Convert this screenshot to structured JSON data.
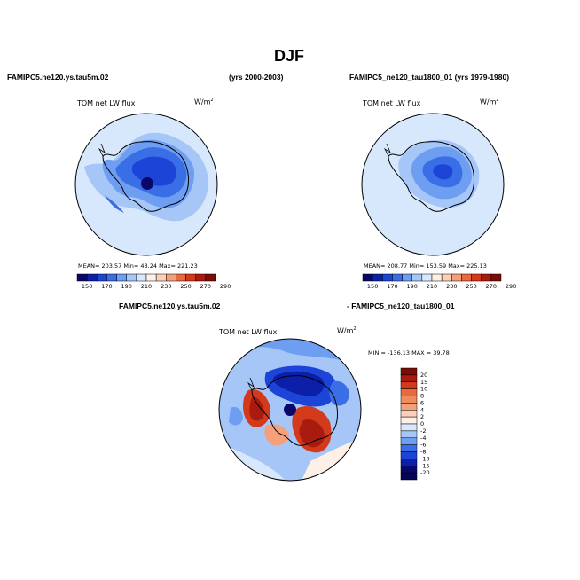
{
  "header": {
    "title": "DJF",
    "left_case": "FAMIPC5.ne120.ys.tau5m.02",
    "left_years": "(yrs 2000-2003)",
    "right_case": "FAMIPC5_ne120_tau1800_01 (yrs 1979-1980)",
    "diff_case_a": "FAMIPC5.ne120.ys.tau5m.02",
    "diff_case_b": "- FAMIPC5_ne120_tau1800_01"
  },
  "panels": [
    {
      "variable": "TOM net LW flux",
      "units": "W/m",
      "units_sup": "2",
      "stats_text": "MEAN= 203.57   Min=  43.24   Max= 221.23"
    },
    {
      "variable": "TOM net LW flux",
      "units": "W/m",
      "units_sup": "2",
      "stats_text": "MEAN= 208.77   Min= 153.59   Max= 225.13"
    },
    {
      "variable": "TOM net LW flux",
      "units": "W/m",
      "units_sup": "2",
      "stats_text": "MIN = -136.13  MAX =  39.78"
    }
  ],
  "colorbars": {
    "absolute": {
      "labels": [
        "150",
        "170",
        "190",
        "210",
        "230",
        "250",
        "270",
        "290"
      ],
      "colors": [
        "#08086b",
        "#0b1fa8",
        "#1c44d6",
        "#3a6ee6",
        "#6d9ef2",
        "#a5c6f7",
        "#d8e8fc",
        "#fdf0e6",
        "#fbd0b8",
        "#f4a07b",
        "#e9693f",
        "#d33a1c",
        "#a81b0e",
        "#7a0d05"
      ]
    },
    "difference": {
      "labels": [
        "20",
        "15",
        "10",
        "8",
        "6",
        "4",
        "2",
        "0",
        "-2",
        "-4",
        "-6",
        "-8",
        "-10",
        "-15",
        "-20"
      ],
      "colors": [
        "#7a0d05",
        "#a81b0e",
        "#d33a1c",
        "#e9693f",
        "#f08a5f",
        "#f4a07b",
        "#fbd0b8",
        "#fdf0e6",
        "#d8e8fc",
        "#a5c6f7",
        "#6d9ef2",
        "#3a6ee6",
        "#1c44d6",
        "#0b1fa8",
        "#08086b",
        "#050555"
      ]
    }
  },
  "chart_data": [
    {
      "type": "heatmap",
      "title": "TOM net LW flux",
      "units": "W/m2",
      "projection": "south polar stereographic",
      "stats": {
        "mean": 203.57,
        "min": 43.24,
        "max": 221.23
      },
      "colorbar_levels": [
        150,
        170,
        190,
        210,
        230,
        250,
        270,
        290
      ]
    },
    {
      "type": "heatmap",
      "title": "TOM net LW flux",
      "units": "W/m2",
      "projection": "south polar stereographic",
      "stats": {
        "mean": 208.77,
        "min": 153.59,
        "max": 225.13
      },
      "colorbar_levels": [
        150,
        170,
        190,
        210,
        230,
        250,
        270,
        290
      ]
    },
    {
      "type": "heatmap",
      "title": "TOM net LW flux",
      "units": "W/m2",
      "projection": "south polar stereographic",
      "stats": {
        "min": -136.13,
        "max": 39.78
      },
      "colorbar_levels": [
        -20,
        -15,
        -10,
        -8,
        -6,
        -4,
        -2,
        0,
        2,
        4,
        6,
        8,
        10,
        15,
        20
      ]
    }
  ]
}
